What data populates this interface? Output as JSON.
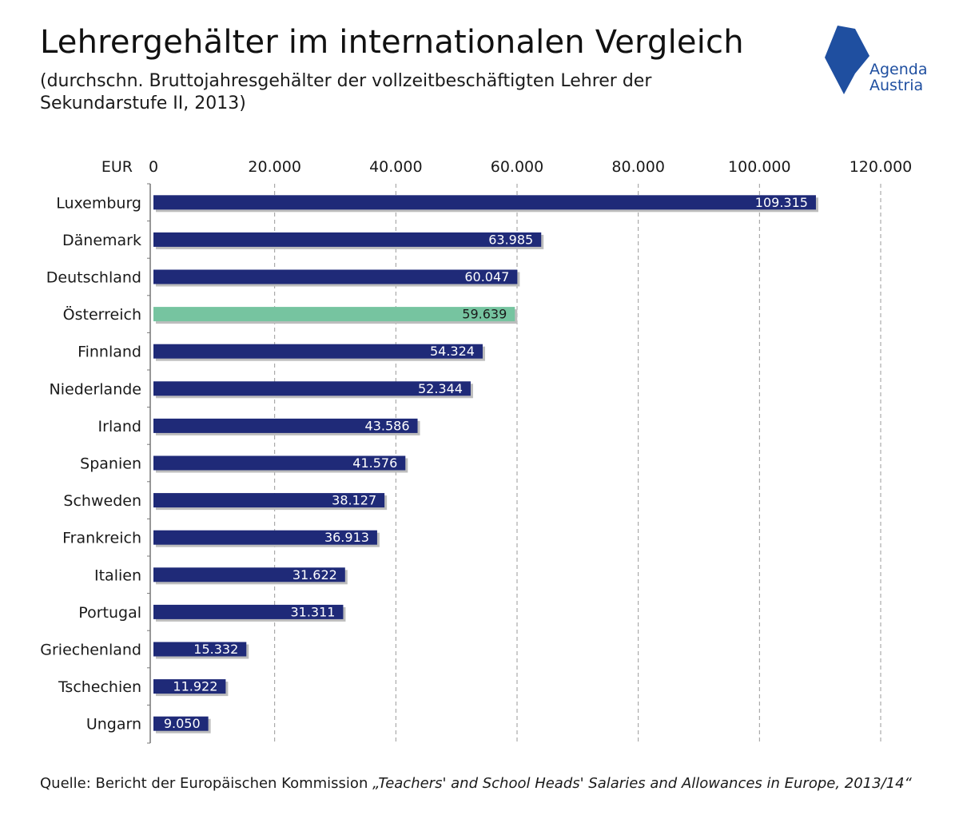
{
  "title": "Lehrergehälter im internationalen Vergleich",
  "subtitle": "(durchschn. Bruttojahresgehälter der vollzeitbeschäftigten Lehrer der Sekundarstufe II, 2013)",
  "logo": {
    "line1": "Agenda",
    "line2": "Austria",
    "color": "#1f4fa0"
  },
  "source": {
    "prefix": "Quelle: Bericht der Europäischen Kommission ",
    "publication": "„Teachers' and School Heads' Salaries and Allowances in Europe, 2013/14“"
  },
  "chart_data": {
    "type": "bar",
    "orientation": "horizontal",
    "unit_label": "EUR",
    "xlim": [
      0,
      120000
    ],
    "ticks": [
      {
        "value": 0,
        "label": "0"
      },
      {
        "value": 20000,
        "label": "20.000"
      },
      {
        "value": 40000,
        "label": "40.000"
      },
      {
        "value": 60000,
        "label": "60.000"
      },
      {
        "value": 80000,
        "label": "80.000"
      },
      {
        "value": 100000,
        "label": "100.000"
      },
      {
        "value": 120000,
        "label": "120.000"
      }
    ],
    "grid": "vertical dashed",
    "categories": [
      "Luxemburg",
      "Dänemark",
      "Deutschland",
      "Österreich",
      "Finnland",
      "Niederlande",
      "Irland",
      "Spanien",
      "Schweden",
      "Frankreich",
      "Italien",
      "Portugal",
      "Griechenland",
      "Tschechien",
      "Ungarn"
    ],
    "values": [
      109315,
      63985,
      60047,
      59639,
      54324,
      52344,
      43586,
      41576,
      38127,
      36913,
      31622,
      31311,
      15332,
      11922,
      9050
    ],
    "value_labels": [
      "109.315",
      "63.985",
      "60.047",
      "59.639",
      "54.324",
      "52.344",
      "43.586",
      "41.576",
      "38.127",
      "36.913",
      "31.622",
      "31.311",
      "15.332",
      "11.922",
      "9.050"
    ],
    "highlight": "Österreich",
    "colors": {
      "bar": "#1f2a78",
      "highlight": "#76c4a0",
      "grid": "#9a9a9a"
    }
  }
}
